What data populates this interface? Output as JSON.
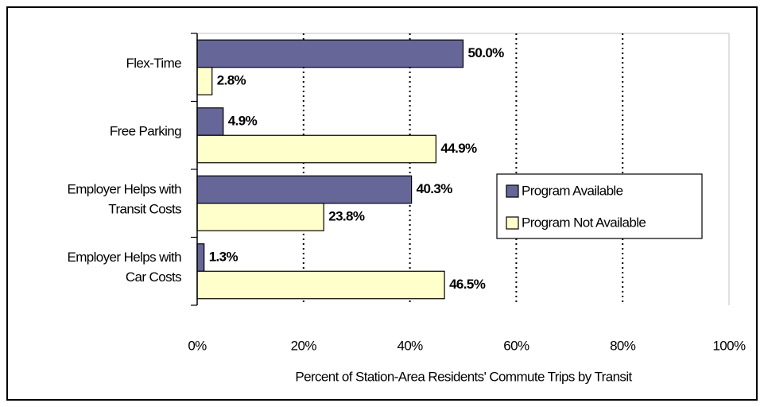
{
  "chart_data": {
    "type": "barh",
    "xlabel": "Percent of Station-Area Residents' Commute Trips by Transit",
    "categories": [
      "Flex-Time",
      "Free Parking",
      "Employer Helps with\nTransit Costs",
      "Employer Helps with\nCar Costs"
    ],
    "series": [
      {
        "name": "Program Available",
        "color": "#666699",
        "values": [
          50.0,
          4.9,
          40.3,
          1.3
        ],
        "value_labels": [
          "50.0%",
          "4.9%",
          "40.3%",
          "1.3%"
        ]
      },
      {
        "name": "Program Not Available",
        "color": "#ffffcc",
        "values": [
          2.8,
          44.9,
          23.8,
          46.5
        ],
        "value_labels": [
          "2.8%",
          "44.9%",
          "23.8%",
          "46.5%"
        ]
      }
    ],
    "xlim": [
      0,
      100
    ],
    "xticks": [
      {
        "value": 0,
        "label": "0%"
      },
      {
        "value": 20,
        "label": "20%"
      },
      {
        "value": 40,
        "label": "40%"
      },
      {
        "value": 60,
        "label": "60%"
      },
      {
        "value": 80,
        "label": "80%"
      },
      {
        "value": 100,
        "label": "100%"
      }
    ],
    "grid": true,
    "legend": "right"
  }
}
